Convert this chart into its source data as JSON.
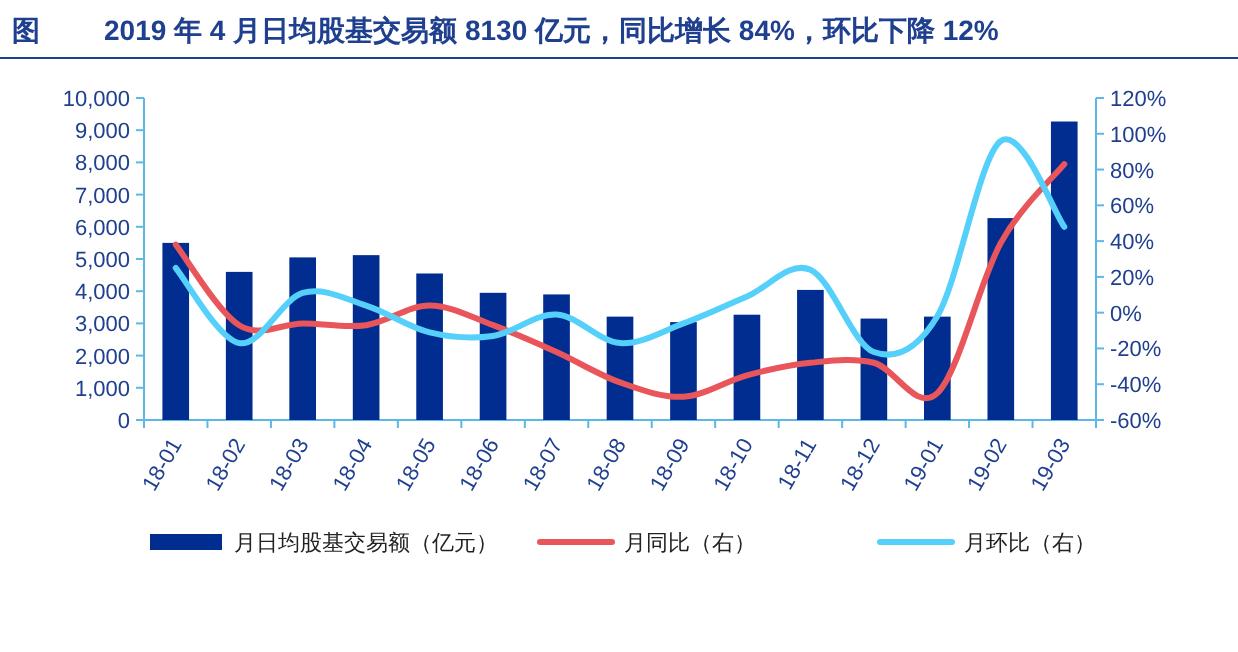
{
  "chart_data": {
    "type": "bar",
    "title": "2019 年 4 月日均股基交易额 8130 亿元，同比增长 84%，环比下降 12%",
    "annotations": [
      "图"
    ],
    "categories": [
      "18-01",
      "18-02",
      "18-03",
      "18-04",
      "18-05",
      "18-06",
      "18-07",
      "18-08",
      "18-09",
      "18-10",
      "18-11",
      "18-12",
      "19-01",
      "19-02",
      "19-03"
    ],
    "series": [
      {
        "name": "月日均股基交易额（亿元）",
        "color": "#002d8f",
        "values": [
          5500,
          4600,
          5050,
          5120,
          4550,
          3950,
          3900,
          3210,
          3040,
          3270,
          4040,
          3150,
          3210,
          6270,
          9270
        ]
      },
      {
        "name": "月同比（右）",
        "type": "line",
        "axis": "y2",
        "color": "#e8555a",
        "values": [
          38,
          -7,
          -6,
          -7,
          4,
          -7,
          -22,
          -39,
          -47,
          -35,
          -28,
          -28,
          -45,
          39,
          83
        ]
      },
      {
        "name": "月环比（右）",
        "type": "line",
        "axis": "y2",
        "color": "#55d0fa",
        "values": [
          25,
          -17,
          11,
          4,
          -11,
          -13,
          -1,
          -17,
          -6,
          9,
          24,
          -22,
          -2,
          96,
          48
        ]
      }
    ],
    "ylim": [
      0,
      10000
    ],
    "yticks": [
      0,
      {
        "value": 1000,
        "label": "1,000"
      },
      {
        "value": 2000,
        "label": "2,000"
      },
      {
        "value": 3000,
        "label": "3,000"
      },
      {
        "value": 4000,
        "label": "4,000"
      },
      {
        "value": 5000,
        "label": "5,000"
      },
      {
        "value": 6000,
        "label": "6,000"
      },
      {
        "value": 7000,
        "label": "7,000"
      },
      {
        "value": 8000,
        "label": "8,000"
      },
      {
        "value": 9000,
        "label": "9,000"
      },
      {
        "value": 10000,
        "label": "10,000"
      }
    ],
    "y2lim": [
      -60,
      120
    ],
    "y2ticks": [
      {
        "value": -60,
        "label": "-60%"
      },
      {
        "value": -40,
        "label": "-40%"
      },
      {
        "value": -20,
        "label": "-20%"
      },
      {
        "value": 0,
        "label": "0%"
      },
      {
        "value": 20,
        "label": "20%"
      },
      {
        "value": 40,
        "label": "40%"
      },
      {
        "value": 60,
        "label": "60%"
      },
      {
        "value": 80,
        "label": "80%"
      },
      {
        "value": 100,
        "label": "100%"
      },
      {
        "value": 120,
        "label": "120%"
      }
    ],
    "legend": "bottom"
  }
}
